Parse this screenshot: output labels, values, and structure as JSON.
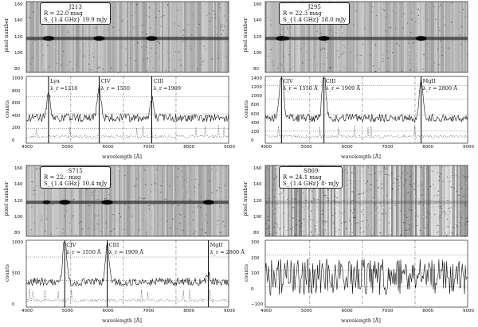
{
  "panels": [
    {
      "id": "a",
      "source": "J213",
      "mag": "R = 22.0 mag",
      "flux": "S_{1.4 GHz}   19.9 mJy",
      "image_ylabel": "pixel number",
      "spec_ylabel": "counts",
      "xlabel": "wavelength [Å]",
      "image_yticks": [
        "160",
        "140",
        "120",
        "100",
        "80"
      ],
      "spec_yticks": [
        "1000",
        "800",
        "600",
        "400",
        "200",
        "0"
      ],
      "xticks": [
        "4000",
        "5000",
        "6000",
        "7000",
        "8000",
        "9000"
      ],
      "lines": [
        {
          "name": "Lyα",
          "wl": "λ_r =1216"
        },
        {
          "name": "CIV",
          "wl": "λ_r = 1550"
        },
        {
          "name": "CIII",
          "wl": "λ_r =1909"
        }
      ]
    },
    {
      "id": "b",
      "source": "J295",
      "mag": "R = 22.3 mag",
      "flux": "S_{1.4 GHz}   18.0 mJy",
      "image_ylabel": "pixel number",
      "spec_ylabel": "counts",
      "xlabel": "wavelength [Å]",
      "image_yticks": [
        "160",
        "140",
        "120",
        "100",
        "80"
      ],
      "spec_yticks": [
        "1400",
        "1200",
        "1000",
        "800",
        "600",
        "400",
        "200",
        "0"
      ],
      "xticks": [
        "4000",
        "5000",
        "6000",
        "7000",
        "8000",
        "9000"
      ],
      "lines": [
        {
          "name": "CIV",
          "wl": "λ_r = 1550 Å"
        },
        {
          "name": "CIII",
          "wl": "λ_r = 1909 Å"
        },
        {
          "name": "MgII",
          "wl": "λ_r = 2800 Å"
        }
      ]
    },
    {
      "id": "c",
      "source": "S715",
      "mag": "R = 22.· mag",
      "flux": "S_{1.4 GHz}   10.4 mJy",
      "image_ylabel": "pixel number",
      "spec_ylabel": "counts",
      "xlabel": "wavelength [Å]",
      "image_yticks": [
        "160",
        "140",
        "120",
        "100",
        "80"
      ],
      "spec_yticks": [
        "1000",
        "500",
        "0"
      ],
      "xticks": [
        "4000",
        "5000",
        "6000",
        "7000",
        "8000",
        "9000"
      ],
      "lines": [
        {
          "name": "CIV",
          "wl": "λ_r = 1550 Å"
        },
        {
          "name": "CIII",
          "wl": "λ_r = 1909 Å"
        },
        {
          "name": "MgII",
          "wl": "λ_r = 2800 Å"
        }
      ]
    },
    {
      "id": "d",
      "source": "S869",
      "mag": "R = 24.1 mag",
      "flux": "S_{1.4 GHz}   8· mJy",
      "image_ylabel": "pixel number",
      "spec_ylabel": "counts",
      "xlabel": "wavelength [Å]",
      "image_yticks": [
        "160",
        "140",
        "120",
        "100",
        "80"
      ],
      "spec_yticks": [
        "300",
        "200",
        "100",
        "0",
        "−100"
      ],
      "xticks": [
        "4000",
        "5000",
        "6000",
        "7000",
        "8000",
        "9000"
      ],
      "lines": []
    }
  ]
}
